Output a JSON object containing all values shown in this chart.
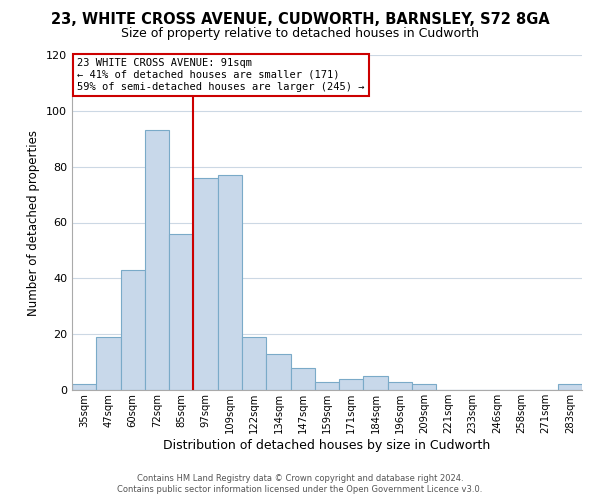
{
  "title": "23, WHITE CROSS AVENUE, CUDWORTH, BARNSLEY, S72 8GA",
  "subtitle": "Size of property relative to detached houses in Cudworth",
  "xlabel": "Distribution of detached houses by size in Cudworth",
  "ylabel": "Number of detached properties",
  "categories": [
    "35sqm",
    "47sqm",
    "60sqm",
    "72sqm",
    "85sqm",
    "97sqm",
    "109sqm",
    "122sqm",
    "134sqm",
    "147sqm",
    "159sqm",
    "171sqm",
    "184sqm",
    "196sqm",
    "209sqm",
    "221sqm",
    "233sqm",
    "246sqm",
    "258sqm",
    "271sqm",
    "283sqm"
  ],
  "values": [
    2,
    19,
    43,
    93,
    56,
    76,
    77,
    19,
    13,
    8,
    3,
    4,
    5,
    3,
    2,
    0,
    0,
    0,
    0,
    0,
    2
  ],
  "bar_color": "#c8d8ea",
  "bar_edge_color": "#7aaac8",
  "highlight_line_color": "#cc0000",
  "annotation_text_line1": "23 WHITE CROSS AVENUE: 91sqm",
  "annotation_text_line2": "← 41% of detached houses are smaller (171)",
  "annotation_text_line3": "59% of semi-detached houses are larger (245) →",
  "annotation_box_color": "#ffffff",
  "annotation_box_edge_color": "#cc0000",
  "ylim": [
    0,
    120
  ],
  "yticks": [
    0,
    20,
    40,
    60,
    80,
    100,
    120
  ],
  "footer_line1": "Contains HM Land Registry data © Crown copyright and database right 2024.",
  "footer_line2": "Contains public sector information licensed under the Open Government Licence v3.0.",
  "background_color": "#ffffff",
  "grid_color": "#ccd8e4",
  "title_fontsize": 10.5,
  "subtitle_fontsize": 9,
  "ylabel_fontsize": 8.5,
  "xlabel_fontsize": 9
}
